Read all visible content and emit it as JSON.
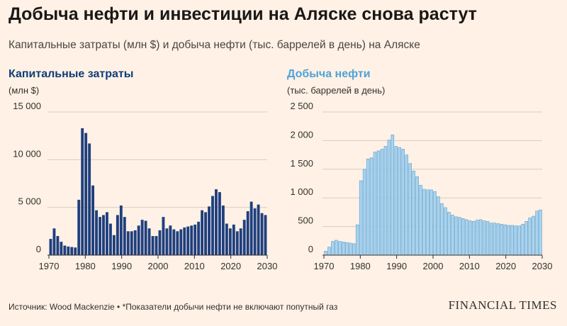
{
  "title": "Добыча нефти и инвестиции на Аляске снова растут",
  "subtitle": "Капитальные затраты (млн $) и добыча нефти (тыс. баррелей в день) на Аляске",
  "source": "Источник: Wood Mackenzie • *Показатели добычи нефти не включают попутный газ",
  "logo": "FINANCIAL TIMES",
  "colors": {
    "background": "#fff1e5",
    "capex_bar": "#1f3f7e",
    "production_bar": "#a9d3ee",
    "grid": "#d7cdc4"
  },
  "chart_data": [
    {
      "type": "bar",
      "title": "Капитальные затраты",
      "ylabel": "(млн $)",
      "x_start": 1970,
      "x_end": 2030,
      "ylim": [
        0,
        15000
      ],
      "yticks": [
        0,
        5000,
        10000,
        15000
      ],
      "ytick_labels": [
        "0",
        "5 000",
        "10 000",
        "15 000"
      ],
      "xticks": [
        1970,
        1980,
        1990,
        2000,
        2010,
        2020,
        2030
      ],
      "values": [
        1700,
        2800,
        2000,
        1400,
        1000,
        900,
        850,
        800,
        5800,
        13300,
        12800,
        11700,
        7300,
        4700,
        4000,
        4200,
        4500,
        3300,
        2100,
        4200,
        5200,
        4000,
        2500,
        2500,
        2600,
        3100,
        3700,
        3600,
        2800,
        2000,
        2000,
        2600,
        4000,
        2800,
        3100,
        2700,
        2500,
        2700,
        2900,
        3000,
        3100,
        3200,
        3500,
        4700,
        4500,
        5100,
        6200,
        6900,
        6600,
        5200,
        3300,
        2800,
        3200,
        2500,
        2800,
        3700,
        4600,
        5600,
        4900,
        5300,
        4400,
        4200
      ]
    },
    {
      "type": "bar",
      "title": "Добыча нефти",
      "ylabel": "(тыс. баррелей в день)",
      "x_start": 1970,
      "x_end": 2030,
      "ylim": [
        0,
        2500
      ],
      "yticks": [
        0,
        500,
        1000,
        1500,
        2000,
        2500
      ],
      "ytick_labels": [
        "0",
        "500",
        "1 000",
        "1 500",
        "2 000",
        "2 500"
      ],
      "xticks": [
        1970,
        1980,
        1990,
        2000,
        2010,
        2020,
        2030
      ],
      "values": [
        70,
        140,
        240,
        260,
        240,
        230,
        220,
        210,
        200,
        530,
        1300,
        1500,
        1680,
        1700,
        1800,
        1820,
        1850,
        1900,
        2010,
        2100,
        1900,
        1880,
        1850,
        1750,
        1600,
        1470,
        1370,
        1220,
        1150,
        1140,
        1140,
        1110,
        1020,
        900,
        830,
        750,
        700,
        670,
        660,
        640,
        620,
        600,
        590,
        610,
        620,
        600,
        590,
        560,
        560,
        550,
        540,
        530,
        520,
        520,
        510,
        510,
        540,
        590,
        650,
        680,
        770,
        790
      ]
    }
  ]
}
